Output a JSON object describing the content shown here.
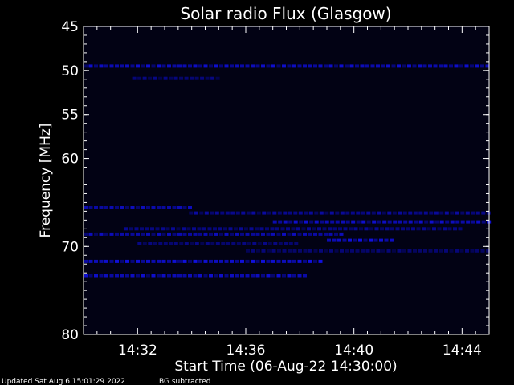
{
  "chart_data": {
    "type": "heatmap",
    "title": "Solar radio Flux (Glasgow)",
    "xlabel": "Start Time (06-Aug-22 14:30:00)",
    "ylabel": "Frequency [MHz]",
    "x_unit": "minutes after 14:30:00",
    "xlim": [
      0,
      15
    ],
    "ylim": [
      45,
      80
    ],
    "x_ticks": [
      {
        "v": 2,
        "label": "14:32"
      },
      {
        "v": 6,
        "label": "14:36"
      },
      {
        "v": 10,
        "label": "14:40"
      },
      {
        "v": 14,
        "label": "14:44"
      }
    ],
    "y_ticks": [
      {
        "v": 45,
        "label": "45"
      },
      {
        "v": 50,
        "label": "50"
      },
      {
        "v": 55,
        "label": "55"
      },
      {
        "v": 60,
        "label": "60"
      },
      {
        "v": 70,
        "label": "70"
      },
      {
        "v": 80,
        "label": "80"
      }
    ],
    "series": [
      {
        "freq": 49.5,
        "t0": 0.0,
        "t1": 15.0,
        "intensity": 0.85
      },
      {
        "freq": 50.9,
        "t0": 1.8,
        "t1": 5.0,
        "intensity": 0.6
      },
      {
        "freq": 65.6,
        "t0": 0.0,
        "t1": 3.9,
        "intensity": 0.8
      },
      {
        "freq": 66.2,
        "t0": 3.9,
        "t1": 15.0,
        "intensity": 0.7
      },
      {
        "freq": 67.2,
        "t0": 7.0,
        "t1": 15.0,
        "intensity": 0.85
      },
      {
        "freq": 68.0,
        "t0": 1.5,
        "t1": 14.0,
        "intensity": 0.65
      },
      {
        "freq": 68.6,
        "t0": 0.0,
        "t1": 9.5,
        "intensity": 0.8
      },
      {
        "freq": 69.3,
        "t0": 9.0,
        "t1": 11.5,
        "intensity": 0.9
      },
      {
        "freq": 69.7,
        "t0": 2.0,
        "t1": 8.0,
        "intensity": 0.6
      },
      {
        "freq": 70.5,
        "t0": 6.0,
        "t1": 15.0,
        "intensity": 0.55
      },
      {
        "freq": 71.7,
        "t0": 0.0,
        "t1": 8.8,
        "intensity": 0.9
      },
      {
        "freq": 73.3,
        "t0": 0.0,
        "t1": 8.2,
        "intensity": 0.85
      }
    ]
  },
  "footer": {
    "updated": "Updated Sat Aug  6 15:01:29 2022",
    "note": "BG subtracted"
  }
}
